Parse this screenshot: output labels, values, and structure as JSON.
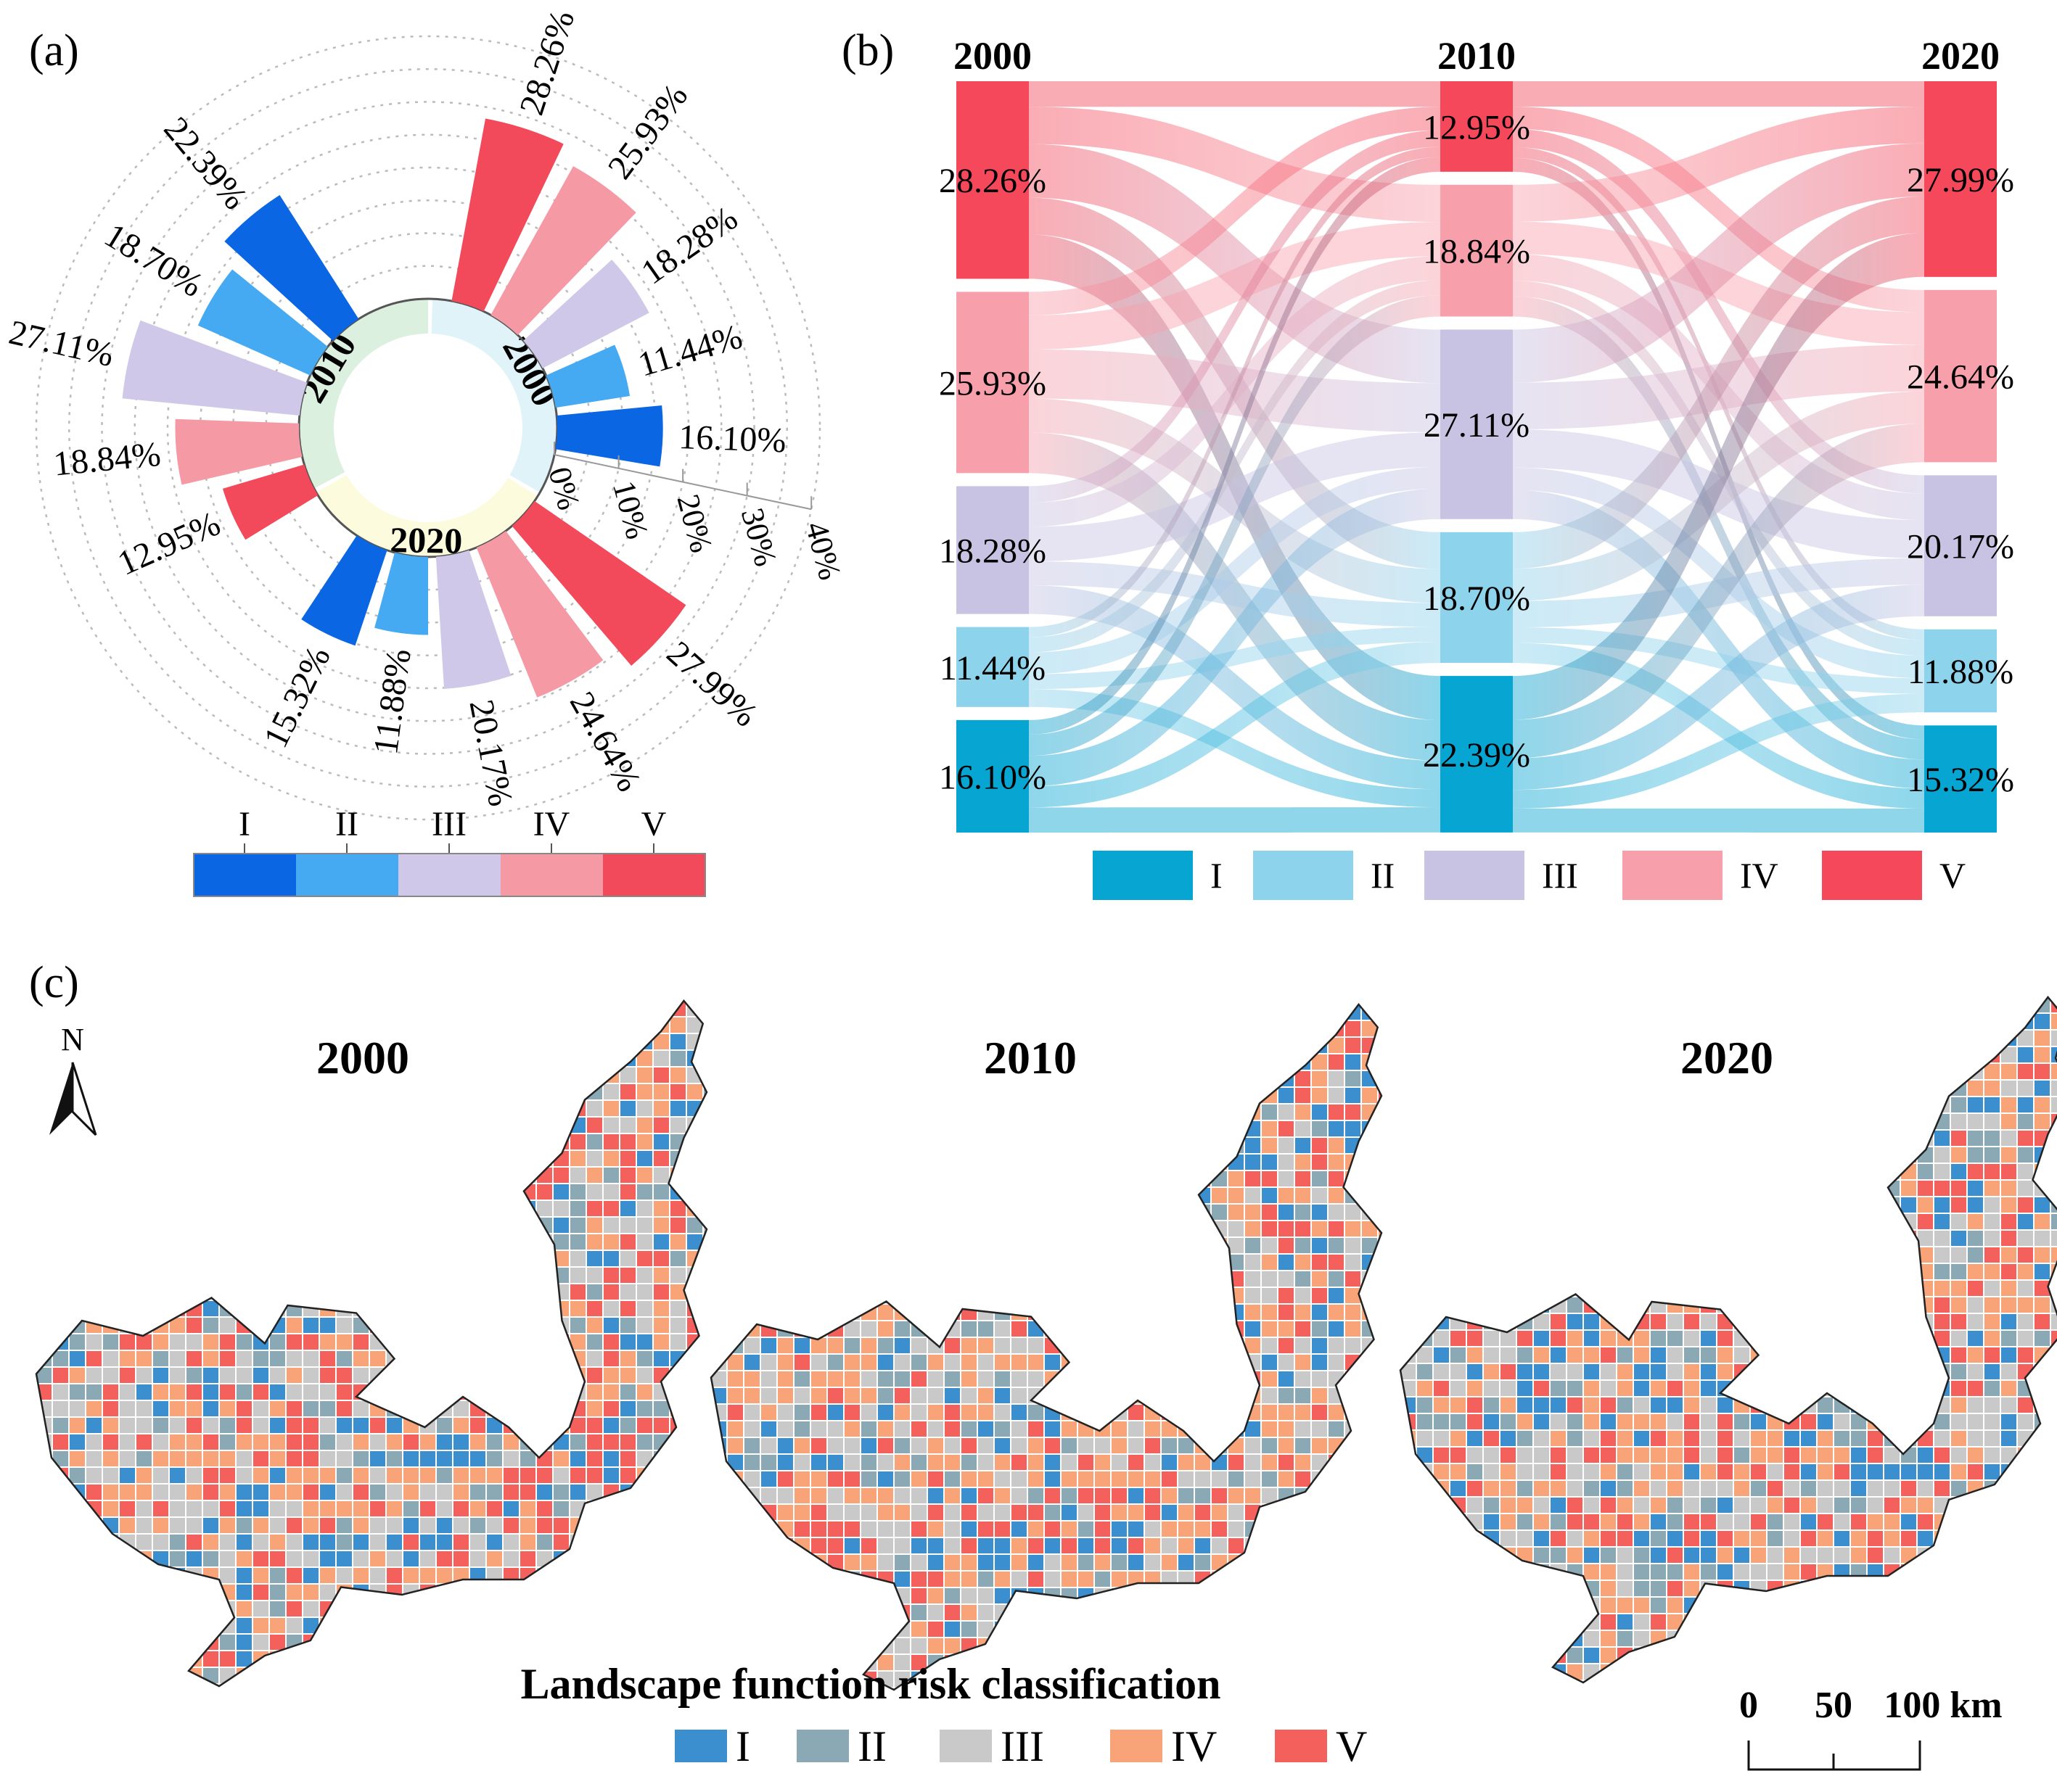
{
  "colors": {
    "rose": [
      "#0a66e3",
      "#45aaf2",
      "#d0c8e8",
      "#f59aa5",
      "#f24a5a"
    ],
    "sankey": [
      "#06a5d2",
      "#8dd3ec",
      "#c8c3e3",
      "#f7a0ac",
      "#f5485a"
    ],
    "map": [
      "#3c8fcf",
      "#8aa9b4",
      "#c9c9c9",
      "#f8a478",
      "#f4605b"
    ],
    "ring": {
      "2000": "#dff3f9",
      "2010": "#dcf0e0",
      "2020": "#fdfbdd"
    }
  },
  "chart_data": [
    {
      "id": "a",
      "type": "bar",
      "subtype": "polar-rose",
      "panel_label": "(a)",
      "categories": [
        "I",
        "II",
        "III",
        "IV",
        "V"
      ],
      "groups": [
        {
          "year": "2000",
          "values": [
            16.1,
            11.44,
            18.28,
            25.93,
            28.26
          ],
          "labels": [
            "16.10%",
            "11.44%",
            "18.28%",
            "25.93%",
            "28.26%"
          ]
        },
        {
          "year": "2010",
          "values": [
            22.39,
            18.7,
            27.11,
            18.84,
            12.95
          ],
          "labels": [
            "22.39%",
            "18.70%",
            "27.11%",
            "18.84%",
            "12.95%"
          ]
        },
        {
          "year": "2020",
          "values": [
            15.32,
            11.88,
            20.17,
            24.64,
            27.99
          ],
          "labels": [
            "15.32%",
            "11.88%",
            "20.17%",
            "24.64%",
            "27.99%"
          ]
        }
      ],
      "radial_axis": {
        "ticks": [
          0,
          10,
          20,
          30,
          40
        ],
        "tick_labels": [
          "0%",
          "10%",
          "20%",
          "30%",
          "40%"
        ],
        "range": [
          0,
          40
        ]
      },
      "legend": [
        "I",
        "II",
        "III",
        "IV",
        "V"
      ]
    },
    {
      "id": "b",
      "type": "sankey",
      "panel_label": "(b)",
      "years": [
        "2000",
        "2010",
        "2020"
      ],
      "categories": [
        "I",
        "II",
        "III",
        "IV",
        "V"
      ],
      "values": {
        "2000": [
          16.1,
          11.44,
          18.28,
          25.93,
          28.26
        ],
        "2010": [
          22.39,
          18.7,
          27.11,
          18.84,
          12.95
        ],
        "2020": [
          15.32,
          11.88,
          20.17,
          24.64,
          27.99
        ]
      },
      "labels": {
        "2000": [
          "16.10%",
          "11.44%",
          "18.28%",
          "25.93%",
          "28.26%"
        ],
        "2010": [
          "22.39%",
          "18.70%",
          "27.11%",
          "18.84%",
          "12.95%"
        ],
        "2020": [
          "15.32%",
          "11.88%",
          "20.17%",
          "24.64%",
          "27.99%"
        ]
      },
      "legend": [
        "I",
        "II",
        "III",
        "IV",
        "V"
      ]
    },
    {
      "id": "c",
      "type": "heatmap",
      "subtype": "grid-map",
      "panel_label": "(c)",
      "map_titles": [
        "2000",
        "2010",
        "2020"
      ],
      "legend_title": "Landscape function risk classification",
      "legend": [
        "I",
        "II",
        "III",
        "IV",
        "V"
      ],
      "north_label": "N",
      "scale_labels": [
        "0",
        "50",
        "100 km"
      ]
    }
  ]
}
